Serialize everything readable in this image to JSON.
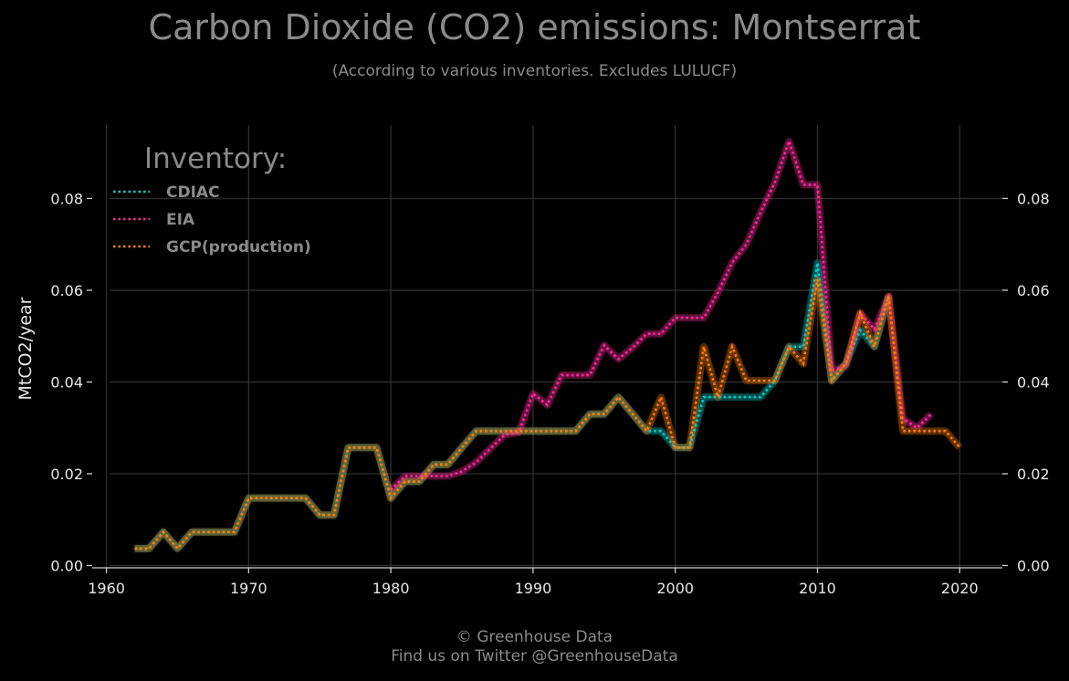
{
  "chart_data": {
    "type": "line",
    "title": "Carbon Dioxide (CO2) emissions: Montserrat",
    "subtitle": "(According to various inventories. Excludes LULUCF)",
    "ylabel": "MtCO2/year",
    "xlabel": "",
    "xlim": [
      1959,
      2023
    ],
    "ylim": [
      -0.0005,
      0.097
    ],
    "xticks": [
      1960,
      1970,
      1980,
      1990,
      2000,
      2010,
      2020
    ],
    "yticks": [
      0.0,
      0.02,
      0.04,
      0.06,
      0.08
    ],
    "ytick_labels": [
      "0.00",
      "0.02",
      "0.04",
      "0.06",
      "0.08"
    ],
    "grid": true,
    "legend_title": "Inventory:",
    "legend_position": "top-left",
    "series": [
      {
        "name": "CDIAC",
        "color": "#00d1d1",
        "x": [
          1962,
          1963,
          1964,
          1965,
          1966,
          1967,
          1968,
          1969,
          1970,
          1971,
          1972,
          1973,
          1974,
          1975,
          1976,
          1977,
          1978,
          1979,
          1980,
          1981,
          1982,
          1983,
          1984,
          1985,
          1986,
          1987,
          1988,
          1989,
          1990,
          1991,
          1992,
          1993,
          1994,
          1995,
          1996,
          1997,
          1998,
          1999,
          2000,
          2001,
          2002,
          2003,
          2004,
          2005,
          2006,
          2007,
          2008,
          2009,
          2010,
          2011,
          2012,
          2013,
          2014,
          2015
        ],
        "values": [
          0.0037,
          0.0037,
          0.0073,
          0.0037,
          0.0073,
          0.0073,
          0.0073,
          0.0073,
          0.0147,
          0.0147,
          0.0147,
          0.0147,
          0.0147,
          0.011,
          0.011,
          0.0257,
          0.0257,
          0.0257,
          0.0147,
          0.0183,
          0.0183,
          0.022,
          0.022,
          0.0257,
          0.0293,
          0.0293,
          0.0293,
          0.0293,
          0.0293,
          0.0293,
          0.0293,
          0.0293,
          0.033,
          0.033,
          0.0367,
          0.033,
          0.0293,
          0.0293,
          0.0257,
          0.0257,
          0.0367,
          0.0367,
          0.0367,
          0.0367,
          0.0367,
          0.0403,
          0.0477,
          0.0477,
          0.066,
          0.0403,
          0.044,
          0.0513,
          0.0477,
          0.0587
        ]
      },
      {
        "name": "EIA",
        "color": "#ff2b9a",
        "x": [
          1980,
          1981,
          1982,
          1983,
          1984,
          1985,
          1986,
          1987,
          1988,
          1989,
          1990,
          1991,
          1992,
          1993,
          1994,
          1995,
          1996,
          1997,
          1998,
          1999,
          2000,
          2001,
          2002,
          2003,
          2004,
          2005,
          2006,
          2007,
          2008,
          2009,
          2010,
          2011,
          2012,
          2013,
          2014,
          2015,
          2016,
          2017,
          2018
        ],
        "values": [
          0.0165,
          0.0195,
          0.0195,
          0.0195,
          0.0195,
          0.0205,
          0.0225,
          0.0255,
          0.0285,
          0.029,
          0.0375,
          0.035,
          0.0415,
          0.0415,
          0.0415,
          0.048,
          0.045,
          0.0475,
          0.0505,
          0.0505,
          0.054,
          0.054,
          0.054,
          0.0595,
          0.066,
          0.07,
          0.077,
          0.0835,
          0.0925,
          0.083,
          0.083,
          0.0425,
          0.0435,
          0.055,
          0.0515,
          0.0585,
          0.032,
          0.03,
          0.033
        ]
      },
      {
        "name": "GCP(production)",
        "color": "#ff7f0e",
        "x": [
          1962,
          1963,
          1964,
          1965,
          1966,
          1967,
          1968,
          1969,
          1970,
          1971,
          1972,
          1973,
          1974,
          1975,
          1976,
          1977,
          1978,
          1979,
          1980,
          1981,
          1982,
          1983,
          1984,
          1985,
          1986,
          1987,
          1988,
          1989,
          1990,
          1991,
          1992,
          1993,
          1994,
          1995,
          1996,
          1997,
          1998,
          1999,
          2000,
          2001,
          2002,
          2003,
          2004,
          2005,
          2006,
          2007,
          2008,
          2009,
          2010,
          2011,
          2012,
          2013,
          2014,
          2015,
          2016,
          2017,
          2018,
          2019,
          2020
        ],
        "values": [
          0.0037,
          0.0037,
          0.0073,
          0.0037,
          0.0073,
          0.0073,
          0.0073,
          0.0073,
          0.0147,
          0.0147,
          0.0147,
          0.0147,
          0.0147,
          0.011,
          0.011,
          0.0257,
          0.0257,
          0.0257,
          0.0147,
          0.0183,
          0.0183,
          0.022,
          0.022,
          0.0257,
          0.0293,
          0.0293,
          0.0293,
          0.0293,
          0.0293,
          0.0293,
          0.0293,
          0.0293,
          0.033,
          0.033,
          0.0367,
          0.033,
          0.0293,
          0.0367,
          0.0257,
          0.0257,
          0.0477,
          0.0367,
          0.0477,
          0.0403,
          0.0403,
          0.0403,
          0.0477,
          0.044,
          0.0623,
          0.0403,
          0.044,
          0.055,
          0.0477,
          0.0587,
          0.0293,
          0.0293,
          0.0293,
          0.0293,
          0.0257
        ]
      }
    ]
  },
  "footer": {
    "line1": "© Greenhouse Data",
    "line2": "Find us on Twitter @GreenhouseData"
  }
}
